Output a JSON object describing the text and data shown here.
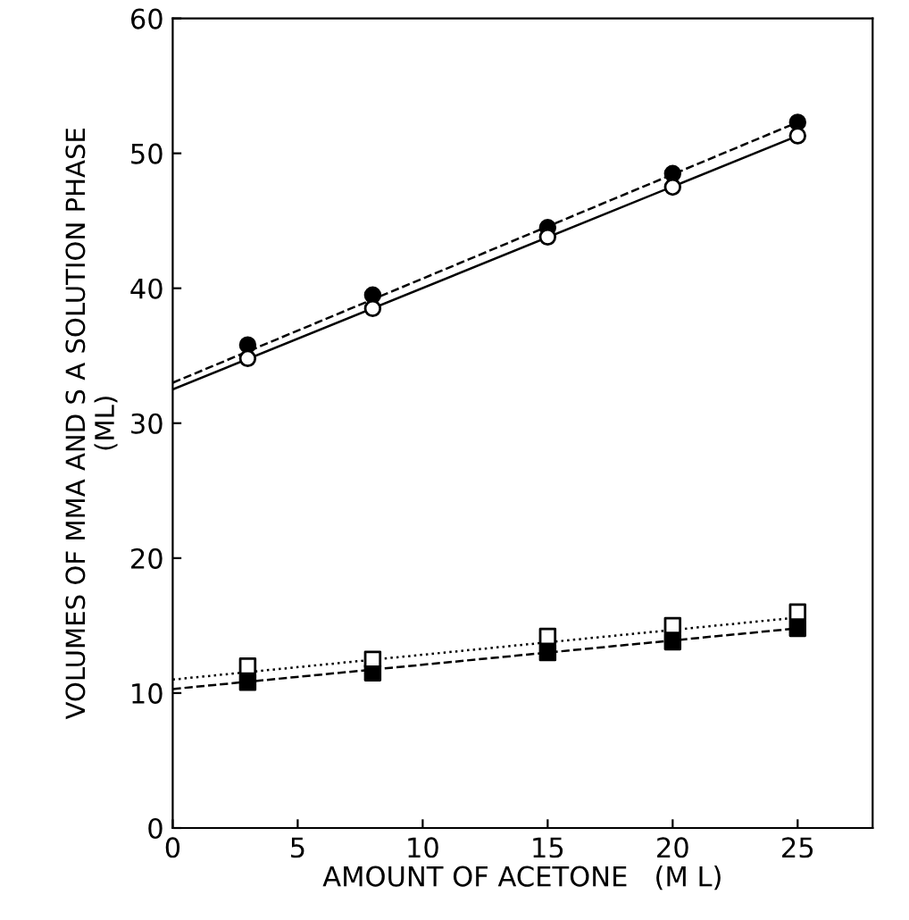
{
  "chart_data": {
    "type": "scatter",
    "xlabel": "AMOUNT OF ACETONE   (M L)",
    "ylabel": "VOLUMES OF MMA AND S A SOLUTION PHASE\n(ML)",
    "xlim": [
      0,
      28
    ],
    "ylim": [
      0,
      60
    ],
    "xticks": [
      0,
      5,
      10,
      15,
      20,
      25
    ],
    "yticks": [
      0,
      10,
      20,
      30,
      40,
      50,
      60
    ],
    "grid": false,
    "legend": false,
    "series": [
      {
        "marker": "circle",
        "color": "#000000",
        "x": [
          3,
          8,
          15,
          20,
          25
        ],
        "values": [
          35.8,
          39.5,
          44.5,
          48.5,
          52.3
        ]
      },
      {
        "marker": "circle",
        "color": "#ffffff",
        "x": [
          3,
          8,
          15,
          20,
          25
        ],
        "values": [
          34.8,
          38.5,
          43.8,
          47.5,
          51.3
        ]
      },
      {
        "marker": "square",
        "color": "#000000",
        "x": [
          3,
          8,
          15,
          20,
          25
        ],
        "values": [
          10.8,
          11.5,
          13,
          13.8,
          14.8
        ]
      },
      {
        "marker": "square",
        "color": "#ffffff",
        "x": [
          3,
          8,
          15,
          20,
          25
        ],
        "values": [
          12,
          12.5,
          14.2,
          15,
          16
        ]
      },
      {
        "type": "line",
        "line_style": "dashed",
        "color": "#000000",
        "x": [
          0,
          25
        ],
        "values": [
          33,
          52.3
        ]
      },
      {
        "type": "line",
        "line_style": "solid",
        "color": "#000000",
        "x": [
          0,
          25
        ],
        "values": [
          32.5,
          51.3
        ]
      },
      {
        "type": "line",
        "line_style": "dashed",
        "color": "#000000",
        "x": [
          0,
          25
        ],
        "values": [
          10.3,
          14.8
        ]
      },
      {
        "type": "line",
        "line_style": "dotted",
        "color": "#000000",
        "x": [
          0,
          25
        ],
        "values": [
          11,
          15.6
        ]
      }
    ]
  }
}
